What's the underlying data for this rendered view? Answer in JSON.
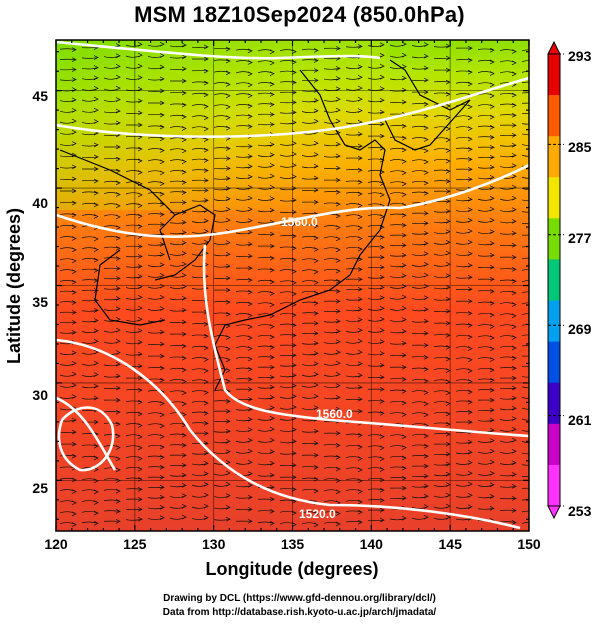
{
  "title": "MSM 18Z10Sep2024 (850.0hPa)",
  "map": {
    "lon_range": [
      120,
      150
    ],
    "lat_range": [
      22.4,
      47.6
    ],
    "x_ticks": [
      "120",
      "125",
      "130",
      "135",
      "140",
      "145",
      "150"
    ],
    "y_ticks": [
      "25",
      "30",
      "35",
      "40",
      "45"
    ],
    "xlabel": "Longitude (degrees)",
    "ylabel": "Latitude (degrees)",
    "grid": true,
    "field": "temperature (shaded) with streamlines",
    "contours": [
      {
        "label": "1560.0"
      },
      {
        "label": "1560.0"
      },
      {
        "label": "1520.0"
      }
    ]
  },
  "colorbar": {
    "ticks": [
      "293",
      "285",
      "277",
      "269",
      "261",
      "253"
    ],
    "colors": [
      "#e60000",
      "#ff5a00",
      "#ffaa00",
      "#f0e600",
      "#78dc00",
      "#00c878",
      "#00a0f0",
      "#0050e6",
      "#3c00c8",
      "#c800c8",
      "#ff32ff"
    ]
  },
  "credits": {
    "line1": "Drawing by DCL (https://www.gfd-dennou.org/library/dcl/)",
    "line2": "Data from http://database.rish.kyoto-u.ac.jp/arch/jmadata/"
  }
}
